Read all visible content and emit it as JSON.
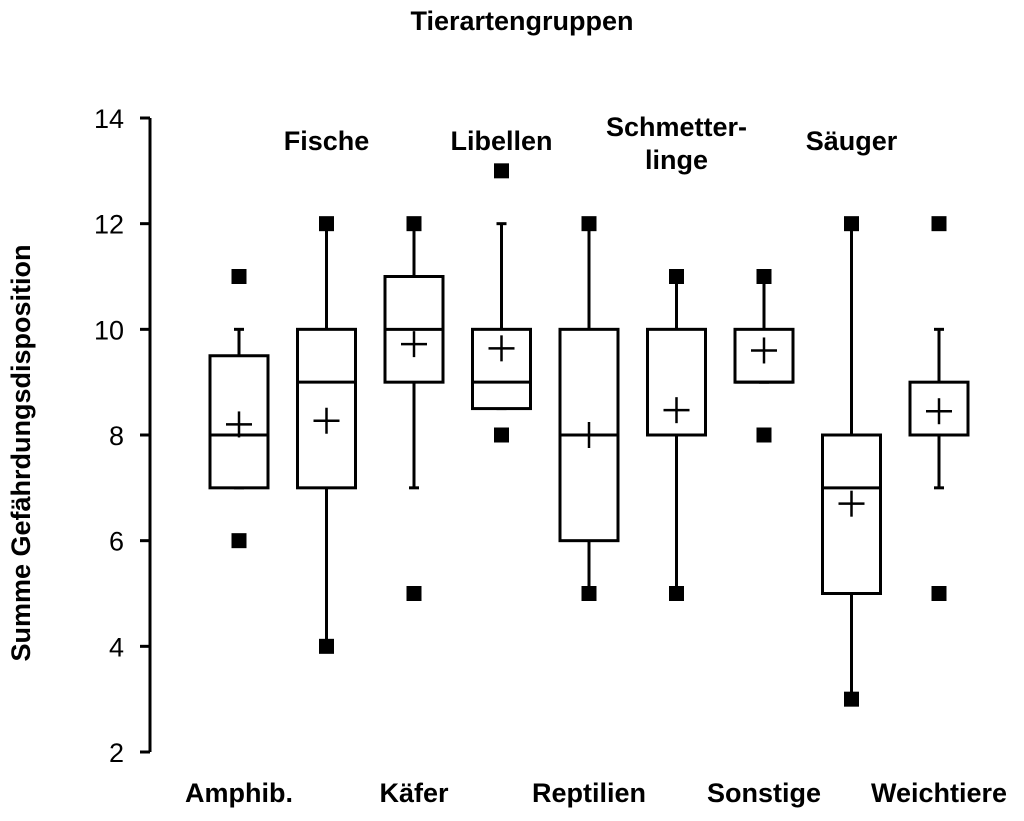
{
  "chart_data": {
    "type": "box",
    "title": "Tierartengruppen",
    "xlabel": "",
    "ylabel": "Summe Gefährdungsdisposition",
    "ylim": [
      2,
      14
    ],
    "yticks": [
      2,
      4,
      6,
      8,
      10,
      12,
      14
    ],
    "grid": false,
    "legend": "none",
    "categories": [
      {
        "label": "Amphib.",
        "label_row": "bottom"
      },
      {
        "label": "Fische",
        "label_row": "top"
      },
      {
        "label": "Käfer",
        "label_row": "bottom"
      },
      {
        "label": "Libellen",
        "label_row": "top"
      },
      {
        "label": "Reptilien",
        "label_row": "bottom"
      },
      {
        "label": "Schmetter-\nlinge",
        "label_row": "top"
      },
      {
        "label": "Sonstige",
        "label_row": "bottom"
      },
      {
        "label": "Säuger",
        "label_row": "top"
      },
      {
        "label": "Weichtiere",
        "label_row": "bottom"
      }
    ],
    "boxes": [
      {
        "min": 6,
        "whisker_low": 7,
        "q1": 7,
        "median": 8,
        "q3": 9.5,
        "whisker_high": 10,
        "max": 11,
        "mean": 8.2
      },
      {
        "min": 4,
        "whisker_low": 4,
        "q1": 7,
        "median": 9,
        "q3": 10,
        "whisker_high": 12,
        "max": 12,
        "mean": 8.27
      },
      {
        "min": 5,
        "whisker_low": 7,
        "q1": 9,
        "median": 10,
        "q3": 11,
        "whisker_high": 12,
        "max": 12,
        "mean": 9.72
      },
      {
        "min": 8,
        "whisker_low": 8.5,
        "q1": 8.5,
        "median": 9,
        "q3": 10,
        "whisker_high": 12,
        "max": 13,
        "mean": 9.64
      },
      {
        "min": 5,
        "whisker_low": 5,
        "q1": 6,
        "median": 8,
        "q3": 10,
        "whisker_high": 12,
        "max": 12,
        "mean": 8.0
      },
      {
        "min": 5,
        "whisker_low": 5,
        "q1": 8,
        "median": 8,
        "q3": 10,
        "whisker_high": 11,
        "max": 11,
        "mean": 8.47
      },
      {
        "min": 8,
        "whisker_low": 9,
        "q1": 9,
        "median": 9,
        "q3": 10,
        "whisker_high": 11,
        "max": 11,
        "mean": 9.6
      },
      {
        "min": 3,
        "whisker_low": 3,
        "q1": 5,
        "median": 7,
        "q3": 8,
        "whisker_high": 12,
        "max": 12,
        "mean": 6.7
      },
      {
        "min": 5,
        "whisker_low": 7,
        "q1": 8,
        "median": 8,
        "q3": 9,
        "whisker_high": 10,
        "max": 12,
        "mean": 8.45
      }
    ]
  }
}
